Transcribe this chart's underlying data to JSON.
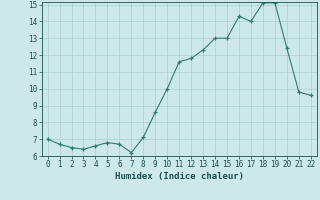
{
  "x": [
    0,
    1,
    2,
    3,
    4,
    5,
    6,
    7,
    8,
    9,
    10,
    11,
    12,
    13,
    14,
    15,
    16,
    17,
    18,
    19,
    20,
    21,
    22
  ],
  "y": [
    7.0,
    6.7,
    6.5,
    6.4,
    6.6,
    6.8,
    6.7,
    6.2,
    7.1,
    8.6,
    10.0,
    11.6,
    11.8,
    12.3,
    13.0,
    13.0,
    14.3,
    14.0,
    15.1,
    15.1,
    12.4,
    9.8,
    9.6
  ],
  "line_color": "#2e7d6e",
  "bg_color": "#cce8e8",
  "grid_color": "#aacfcf",
  "tick_color": "#1a4f4f",
  "xlabel": "Humidex (Indice chaleur)",
  "ylim": [
    6,
    15
  ],
  "xlim": [
    -0.5,
    22.5
  ],
  "yticks": [
    6,
    7,
    8,
    9,
    10,
    11,
    12,
    13,
    14,
    15
  ],
  "xticks": [
    0,
    1,
    2,
    3,
    4,
    5,
    6,
    7,
    8,
    9,
    10,
    11,
    12,
    13,
    14,
    15,
    16,
    17,
    18,
    19,
    20,
    21,
    22
  ],
  "tick_fontsize": 5.5,
  "xlabel_fontsize": 6.5
}
